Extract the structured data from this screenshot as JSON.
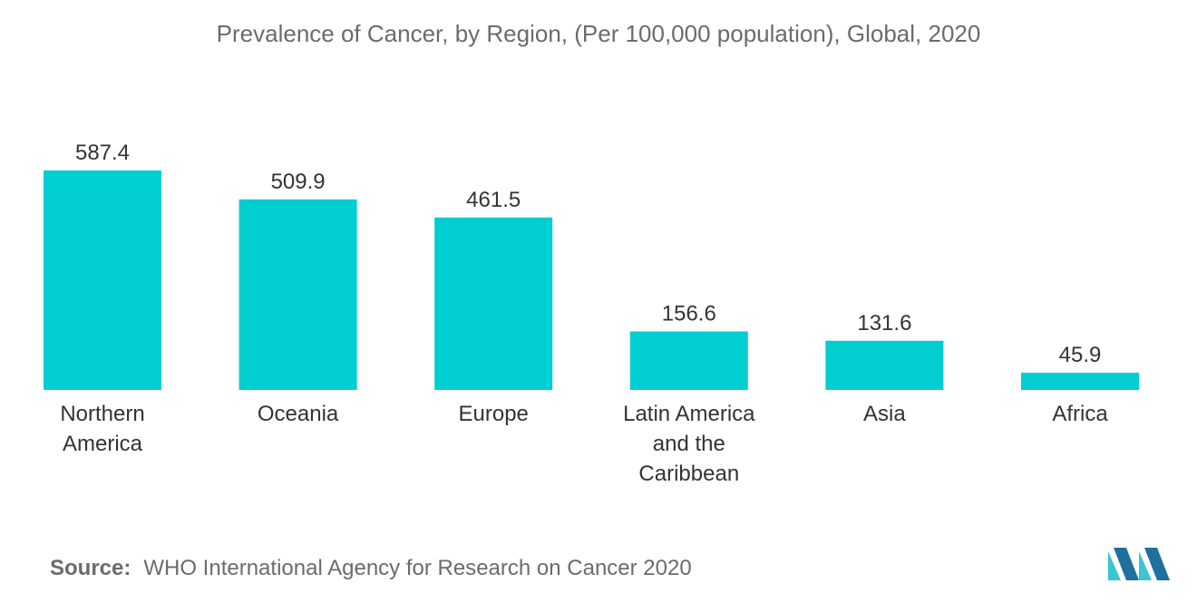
{
  "chart_data": {
    "type": "bar",
    "title": "Prevalence of Cancer, by Region, (Per 100,000 population), Global, 2020",
    "categories": [
      [
        "Northern",
        "America"
      ],
      [
        "Oceania"
      ],
      [
        "Europe"
      ],
      [
        "Latin America",
        "and the",
        "Caribbean"
      ],
      [
        "Asia"
      ],
      [
        "Africa"
      ]
    ],
    "values": [
      587.4,
      509.9,
      461.5,
      156.6,
      131.6,
      45.9
    ],
    "value_labels": [
      "587.4",
      "509.9",
      "461.5",
      "156.6",
      "131.6",
      "45.9"
    ],
    "ylim": [
      0,
      587.4
    ],
    "grid": false,
    "color": "#00ced1"
  },
  "source": {
    "key": "Source:",
    "text": "WHO International Agency for Research on Cancer 2020"
  },
  "colors": {
    "bar": "#00ced1",
    "logo_dark": "#1f6f9f",
    "logo_light": "#37c6d2"
  },
  "logo_icon": "mordor-intelligence-logo-icon"
}
